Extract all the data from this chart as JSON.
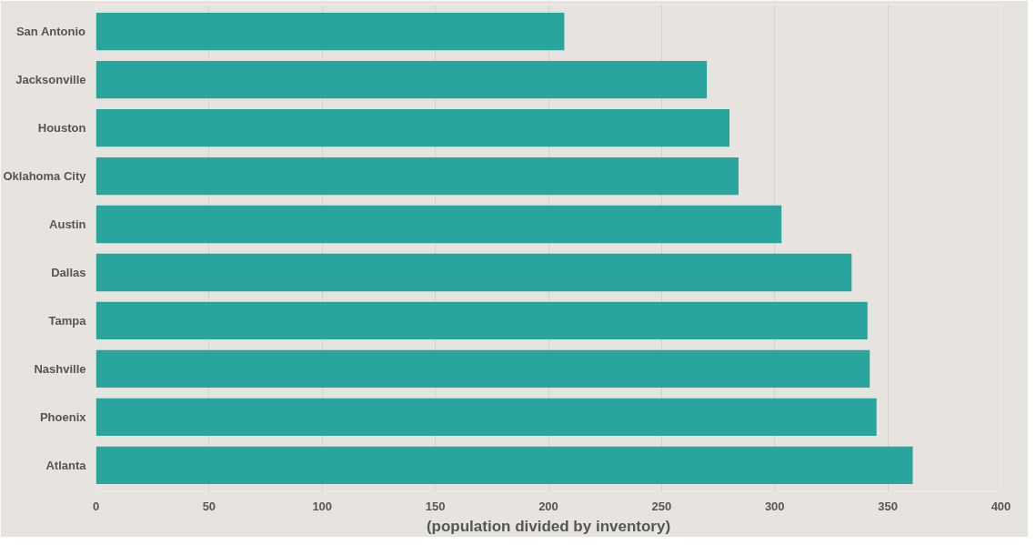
{
  "chart_data": {
    "type": "bar",
    "orientation": "horizontal",
    "xlabel": "(population divided by inventory)",
    "categories": [
      "San Antonio",
      "Jacksonville",
      "Houston",
      "Oklahoma City",
      "Austin",
      "Dallas",
      "Tampa",
      "Nashville",
      "Phoenix",
      "Atlanta"
    ],
    "values": [
      207,
      270,
      280,
      284,
      303,
      334,
      341,
      342,
      345,
      361
    ],
    "color": "#2aa59e",
    "xlim": [
      0,
      400
    ],
    "xticks": [
      0,
      50,
      100,
      150,
      200,
      250,
      300,
      350,
      400
    ],
    "grid": "x"
  }
}
